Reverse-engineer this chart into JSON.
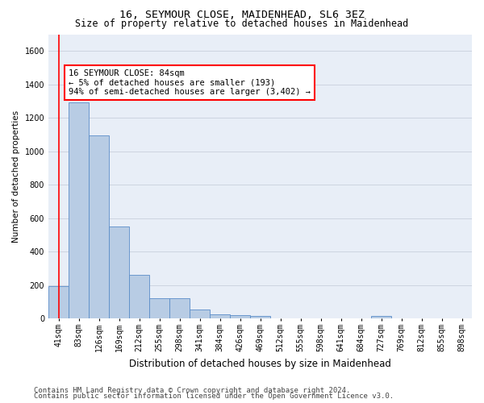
{
  "title": "16, SEYMOUR CLOSE, MAIDENHEAD, SL6 3EZ",
  "subtitle": "Size of property relative to detached houses in Maidenhead",
  "xlabel": "Distribution of detached houses by size in Maidenhead",
  "ylabel": "Number of detached properties",
  "categories": [
    "41sqm",
    "83sqm",
    "126sqm",
    "169sqm",
    "212sqm",
    "255sqm",
    "298sqm",
    "341sqm",
    "384sqm",
    "426sqm",
    "469sqm",
    "512sqm",
    "555sqm",
    "598sqm",
    "641sqm",
    "684sqm",
    "727sqm",
    "769sqm",
    "812sqm",
    "855sqm",
    "898sqm"
  ],
  "values": [
    193,
    1295,
    1095,
    553,
    262,
    120,
    120,
    57,
    28,
    20,
    14,
    0,
    0,
    0,
    0,
    0,
    14,
    0,
    0,
    0,
    0
  ],
  "bar_color": "#b8cce4",
  "bar_edge_color": "#5b8dc8",
  "annotation_text": "16 SEYMOUR CLOSE: 84sqm\n← 5% of detached houses are smaller (193)\n94% of semi-detached houses are larger (3,402) →",
  "annotation_box_color": "white",
  "annotation_box_edge_color": "red",
  "red_line_color": "red",
  "ylim": [
    0,
    1700
  ],
  "yticks": [
    0,
    200,
    400,
    600,
    800,
    1000,
    1200,
    1400,
    1600
  ],
  "grid_color": "#c8d0dc",
  "bg_color": "#e8eef7",
  "footer_line1": "Contains HM Land Registry data © Crown copyright and database right 2024.",
  "footer_line2": "Contains public sector information licensed under the Open Government Licence v3.0.",
  "title_fontsize": 9.5,
  "subtitle_fontsize": 8.5,
  "xlabel_fontsize": 8.5,
  "ylabel_fontsize": 7.5,
  "tick_fontsize": 7,
  "annot_fontsize": 7.5,
  "footer_fontsize": 6.5
}
